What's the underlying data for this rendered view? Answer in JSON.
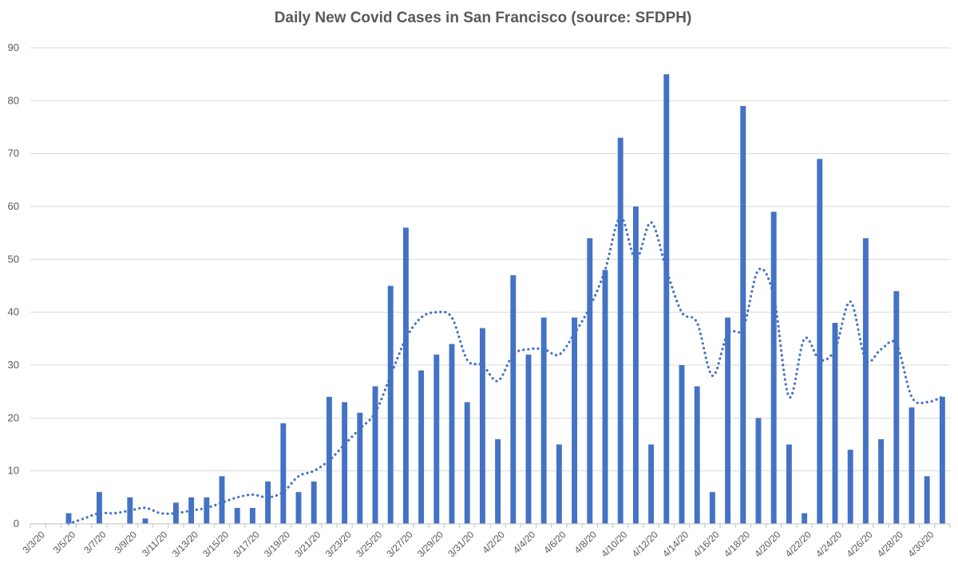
{
  "chart_data": {
    "type": "bar",
    "title": "Daily New Covid Cases in San Francisco (source: SFDPH)",
    "xlabel": "",
    "ylabel": "",
    "ylim": [
      0,
      90
    ],
    "yticks": [
      0,
      10,
      20,
      30,
      40,
      50,
      60,
      70,
      80,
      90
    ],
    "grid": "horizontal",
    "legend": "none",
    "bar_color": "#4472C4",
    "trend_color": "#4472C4",
    "trend_style": "dotted moving average",
    "categories": [
      "3/3/20",
      "3/4/20",
      "3/5/20",
      "3/6/20",
      "3/7/20",
      "3/8/20",
      "3/9/20",
      "3/10/20",
      "3/11/20",
      "3/12/20",
      "3/13/20",
      "3/14/20",
      "3/15/20",
      "3/16/20",
      "3/17/20",
      "3/18/20",
      "3/19/20",
      "3/20/20",
      "3/21/20",
      "3/22/20",
      "3/23/20",
      "3/24/20",
      "3/25/20",
      "3/26/20",
      "3/27/20",
      "3/28/20",
      "3/29/20",
      "3/30/20",
      "3/31/20",
      "4/1/20",
      "4/2/20",
      "4/3/20",
      "4/4/20",
      "4/5/20",
      "4/6/20",
      "4/7/20",
      "4/8/20",
      "4/9/20",
      "4/10/20",
      "4/11/20",
      "4/12/20",
      "4/13/20",
      "4/14/20",
      "4/15/20",
      "4/16/20",
      "4/17/20",
      "4/18/20",
      "4/19/20",
      "4/20/20",
      "4/21/20",
      "4/22/20",
      "4/23/20",
      "4/24/20",
      "4/25/20",
      "4/26/20",
      "4/27/20",
      "4/28/20",
      "4/29/20",
      "4/30/20",
      "5/1/20"
    ],
    "tick_labels": [
      "3/3/20",
      "3/5/20",
      "3/7/20",
      "3/9/20",
      "3/11/20",
      "3/13/20",
      "3/15/20",
      "3/17/20",
      "3/19/20",
      "3/21/20",
      "3/23/20",
      "3/25/20",
      "3/27/20",
      "3/29/20",
      "3/31/20",
      "4/2/20",
      "4/4/20",
      "4/6/20",
      "4/8/20",
      "4/10/20",
      "4/12/20",
      "4/14/20",
      "4/16/20",
      "4/18/20",
      "4/20/20",
      "4/22/20",
      "4/24/20",
      "4/26/20",
      "4/28/20",
      "4/30/20"
    ],
    "values": [
      0,
      0,
      2,
      0,
      6,
      0,
      5,
      1,
      0,
      4,
      5,
      5,
      9,
      3,
      3,
      8,
      19,
      6,
      8,
      24,
      23,
      21,
      26,
      45,
      56,
      29,
      32,
      34,
      23,
      37,
      16,
      47,
      32,
      39,
      15,
      39,
      54,
      48,
      73,
      60,
      15,
      85,
      30,
      26,
      6,
      39,
      79,
      20,
      59,
      15,
      2,
      69,
      38,
      14,
      54,
      16,
      44,
      22,
      9,
      24
    ],
    "trend": [
      null,
      null,
      0,
      1,
      2,
      2,
      2.5,
      3,
      2,
      2,
      2.5,
      3,
      4,
      5,
      5.5,
      5,
      6,
      9,
      10,
      12,
      15,
      18,
      21,
      28,
      35,
      39,
      40,
      39,
      31,
      30,
      27,
      32,
      33,
      33,
      32,
      36,
      41,
      48,
      58,
      50,
      57,
      48,
      40,
      38,
      28,
      36,
      37,
      48,
      43,
      24,
      35,
      31,
      33,
      42,
      31,
      33,
      34,
      24,
      23,
      24
    ]
  }
}
